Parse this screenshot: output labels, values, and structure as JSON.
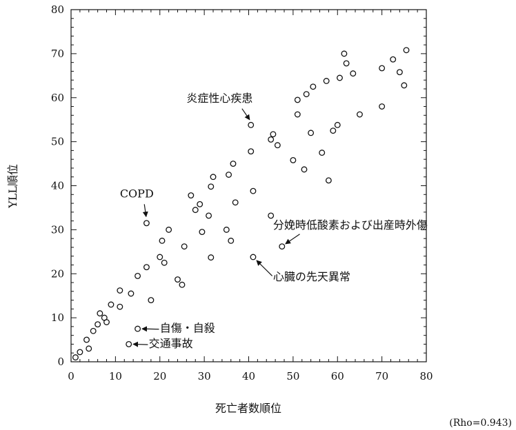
{
  "chart_data": {
    "type": "scatter",
    "xlabel": "死亡者数順位",
    "ylabel": "YLL順位",
    "xlim": [
      0,
      80
    ],
    "ylim": [
      0,
      80
    ],
    "xticks": [
      0,
      10,
      20,
      30,
      40,
      50,
      60,
      70,
      80
    ],
    "yticks": [
      0,
      10,
      20,
      30,
      40,
      50,
      60,
      70,
      80
    ],
    "grid": false,
    "points": [
      [
        1,
        1
      ],
      [
        2,
        2.2
      ],
      [
        3.5,
        5
      ],
      [
        4,
        3
      ],
      [
        5,
        7
      ],
      [
        6,
        8.5
      ],
      [
        6.5,
        11
      ],
      [
        7.5,
        10
      ],
      [
        8,
        9
      ],
      [
        9,
        13
      ],
      [
        11,
        16.2
      ],
      [
        11,
        12.5
      ],
      [
        13.5,
        15.5
      ],
      [
        15,
        19.5
      ],
      [
        15,
        7.5
      ],
      [
        13,
        4
      ],
      [
        17,
        21.5
      ],
      [
        17,
        31.5
      ],
      [
        18,
        14
      ],
      [
        20,
        23.8
      ],
      [
        20.5,
        27.5
      ],
      [
        21,
        22.5
      ],
      [
        22,
        30
      ],
      [
        24,
        18.7
      ],
      [
        25,
        17.5
      ],
      [
        25.5,
        26.2
      ],
      [
        27,
        37.8
      ],
      [
        28,
        34.5
      ],
      [
        29,
        35.8
      ],
      [
        29.5,
        29.5
      ],
      [
        31,
        33.2
      ],
      [
        31.5,
        39.8
      ],
      [
        31.5,
        23.7
      ],
      [
        32,
        42
      ],
      [
        35,
        30
      ],
      [
        35.5,
        42.5
      ],
      [
        36,
        27.5
      ],
      [
        36.5,
        45
      ],
      [
        37,
        36.2
      ],
      [
        40.5,
        47.8
      ],
      [
        40.5,
        53.8
      ],
      [
        41,
        38.8
      ],
      [
        41,
        23.8
      ],
      [
        45,
        50.5
      ],
      [
        45,
        33.2
      ],
      [
        45.5,
        51.7
      ],
      [
        46.5,
        49.2
      ],
      [
        47.5,
        26.2
      ],
      [
        50,
        45.8
      ],
      [
        51,
        56.2
      ],
      [
        51,
        59.5
      ],
      [
        52.5,
        43.7
      ],
      [
        53,
        60.8
      ],
      [
        54,
        52
      ],
      [
        54.5,
        62.5
      ],
      [
        56.5,
        47.5
      ],
      [
        57.5,
        63.8
      ],
      [
        58,
        41.2
      ],
      [
        59,
        52.5
      ],
      [
        60,
        53.8
      ],
      [
        60.5,
        64.5
      ],
      [
        61.5,
        70
      ],
      [
        62,
        67.8
      ],
      [
        63.5,
        65.5
      ],
      [
        65,
        56.2
      ],
      [
        70,
        58
      ],
      [
        70,
        66.7
      ],
      [
        72.5,
        68.7
      ],
      [
        74,
        65.8
      ],
      [
        75,
        62.8
      ],
      [
        75.5,
        70.8
      ]
    ],
    "annotations": [
      {
        "text": "炎症性心疾患",
        "x": 40.5,
        "y": 53.8,
        "label_x": 26,
        "label_y": 59,
        "anchor": "start"
      },
      {
        "text": "COPD",
        "x": 17,
        "y": 31.5,
        "label_x": 11,
        "label_y": 37.3,
        "anchor": "start"
      },
      {
        "text": "分娩時低酸素および出産時外傷",
        "x": 47.5,
        "y": 26.2,
        "label_x": 45.5,
        "label_y": 30.2,
        "anchor": "start"
      },
      {
        "text": "心臓の先天異常",
        "x": 41,
        "y": 23.8,
        "label_x": 45.5,
        "label_y": 18.5,
        "anchor": "start"
      },
      {
        "text": "自傷・自殺",
        "x": 15,
        "y": 7.5,
        "label_x": 20,
        "label_y": 6.8,
        "anchor": "start"
      },
      {
        "text": "交通事故",
        "x": 13,
        "y": 4,
        "label_x": 17.5,
        "label_y": 3.3,
        "anchor": "start"
      }
    ],
    "note": "(Rho=0.943)"
  }
}
